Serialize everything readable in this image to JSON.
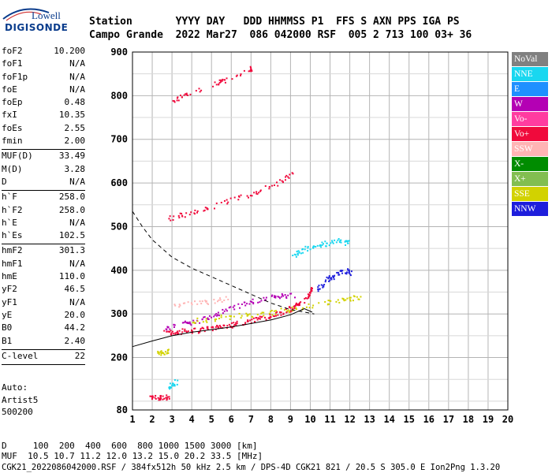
{
  "logo": {
    "top": "Lowell",
    "bottom": "DIGISONDE"
  },
  "header": {
    "row1": "Station       YYYY DAY   DDD HHMMSS P1  FFS S AXN PPS IGA PS",
    "row2": "Campo Grande  2022 Mar27  086 042000 RSF  005 2 713 100 03+ 36"
  },
  "params": [
    {
      "label": "foF2",
      "value": "10.200"
    },
    {
      "label": "foF1",
      "value": "N/A"
    },
    {
      "label": "foF1p",
      "value": "N/A"
    },
    {
      "label": "foE",
      "value": "N/A"
    },
    {
      "label": "foEp",
      "value": "0.48"
    },
    {
      "label": "fxI",
      "value": "10.35"
    },
    {
      "label": "foEs",
      "value": "2.55"
    },
    {
      "label": "fmin",
      "value": "2.00"
    },
    {
      "sep": true
    },
    {
      "label": "MUF(D)",
      "value": "33.49"
    },
    {
      "label": "M(D)",
      "value": "3.28"
    },
    {
      "label": "D",
      "value": "N/A"
    },
    {
      "sep": true
    },
    {
      "label": "h`F",
      "value": "258.0"
    },
    {
      "label": "h`F2",
      "value": "258.0"
    },
    {
      "label": "h`E",
      "value": "N/A"
    },
    {
      "label": "h`Es",
      "value": "102.5"
    },
    {
      "sep": true
    },
    {
      "label": "hmF2",
      "value": "301.3"
    },
    {
      "label": "hmF1",
      "value": "N/A"
    },
    {
      "label": "hmE",
      "value": "110.0"
    },
    {
      "label": "yF2",
      "value": "46.5"
    },
    {
      "label": "yF1",
      "value": "N/A"
    },
    {
      "label": "yE",
      "value": "20.0"
    },
    {
      "label": "B0",
      "value": "44.2"
    },
    {
      "label": "B1",
      "value": "2.40"
    },
    {
      "sep": true
    },
    {
      "label": "C-level",
      "value": "22"
    },
    {
      "sep": true
    }
  ],
  "auto": [
    "Auto:",
    "Artist5",
    "500200"
  ],
  "footer": {
    "line1": "D     100  200  400  600  800 1000 1500 3000 [km]",
    "line2": "MUF  10.5 10.7 11.2 12.0 13.2 15.0 20.2 33.5 [MHz]",
    "line3": "CGK21_2022086042000.RSF / 384fx512h 50 kHz 2.5 km / DPS-4D CGK21 821 / 20.5 S 305.0 E Ion2Png 1.3.20"
  },
  "legend": [
    {
      "label": "NoVal",
      "color": "#808080"
    },
    {
      "label": "NNE",
      "color": "#19d7f0"
    },
    {
      "label": "E",
      "color": "#1e90ff"
    },
    {
      "label": "W",
      "color": "#b400b4"
    },
    {
      "label": "Vo-",
      "color": "#ff3ca0"
    },
    {
      "label": "Vo+",
      "color": "#f00a3c"
    },
    {
      "label": "SSW",
      "color": "#ffb4b4"
    },
    {
      "label": "X-",
      "color": "#008c00"
    },
    {
      "label": "X+",
      "color": "#82be50"
    },
    {
      "label": "SSE",
      "color": "#d2d200"
    },
    {
      "label": "NNW",
      "color": "#1e1edc"
    }
  ],
  "chart_data": {
    "type": "scatter",
    "xlim": [
      1,
      20
    ],
    "ylim": [
      80,
      900
    ],
    "x_ticks": [
      1,
      2,
      3,
      4,
      5,
      6,
      7,
      8,
      9,
      10,
      11,
      12,
      13,
      14,
      15,
      16,
      17,
      18,
      19,
      20
    ],
    "y_ticks": [
      80,
      200,
      300,
      400,
      500,
      600,
      700,
      800,
      900
    ],
    "grid": true,
    "legend_position": "right",
    "traces": [
      {
        "pol": "Vo+",
        "points": [
          [
            2.6,
            258
          ],
          [
            3,
            259
          ],
          [
            3.5,
            261
          ],
          [
            4,
            263
          ],
          [
            4.5,
            265
          ],
          [
            5,
            268
          ],
          [
            5.5,
            272
          ],
          [
            6,
            276
          ],
          [
            6.5,
            281
          ],
          [
            7,
            286
          ],
          [
            7.5,
            292
          ],
          [
            8,
            298
          ],
          [
            8.5,
            305
          ],
          [
            9,
            313
          ],
          [
            9.3,
            320
          ],
          [
            9.6,
            330
          ],
          [
            9.9,
            345
          ],
          [
            10.1,
            360
          ]
        ]
      },
      {
        "pol": "W",
        "points": [
          [
            2.6,
            270
          ],
          [
            3.2,
            275
          ],
          [
            4,
            282
          ],
          [
            4.8,
            292
          ],
          [
            5.5,
            305
          ],
          [
            6.2,
            318
          ],
          [
            7,
            330
          ],
          [
            7.8,
            338
          ],
          [
            8.5,
            342
          ],
          [
            9.2,
            345
          ]
        ]
      },
      {
        "pol": "SSE",
        "points": [
          [
            4,
            285
          ],
          [
            5,
            290
          ],
          [
            6,
            295
          ],
          [
            7,
            300
          ],
          [
            8,
            305
          ],
          [
            9,
            312
          ],
          [
            10,
            320
          ],
          [
            11,
            330
          ],
          [
            12,
            335
          ],
          [
            12.5,
            340
          ]
        ]
      },
      {
        "pol": "NNE",
        "points": [
          [
            9,
            430
          ],
          [
            9.5,
            445
          ],
          [
            10,
            455
          ],
          [
            10.5,
            460
          ],
          [
            11,
            465
          ],
          [
            11.5,
            470
          ],
          [
            12,
            462
          ]
        ]
      },
      {
        "pol": "NNW",
        "points": [
          [
            10.2,
            350
          ],
          [
            10.6,
            370
          ],
          [
            11,
            385
          ],
          [
            11.4,
            395
          ],
          [
            11.8,
            400
          ],
          [
            12,
            395
          ]
        ]
      },
      {
        "pol": "Vo+",
        "points": [
          [
            2.8,
            520
          ],
          [
            3.5,
            528
          ],
          [
            4.5,
            540
          ],
          [
            5.5,
            555
          ],
          [
            6.5,
            570
          ],
          [
            7.5,
            585
          ],
          [
            8.5,
            605
          ],
          [
            9.2,
            625
          ]
        ]
      },
      {
        "pol": "Vo+",
        "points": [
          [
            2.8,
            785
          ],
          [
            3.5,
            800
          ],
          [
            4.5,
            815
          ],
          [
            5.5,
            835
          ],
          [
            6.5,
            855
          ],
          [
            7,
            865
          ]
        ]
      },
      {
        "pol": "SSW",
        "points": [
          [
            3,
            320
          ],
          [
            4,
            325
          ],
          [
            5,
            330
          ],
          [
            6,
            340
          ]
        ]
      },
      {
        "pol": "SSE",
        "points": [
          [
            2.2,
            210
          ],
          [
            2.5,
            212
          ],
          [
            2.8,
            215
          ]
        ]
      },
      {
        "pol": "Vo+",
        "points": [
          [
            1.9,
            108
          ],
          [
            2.2,
            110
          ],
          [
            2.5,
            110
          ],
          [
            2.8,
            110
          ]
        ]
      },
      {
        "pol": "NNE",
        "points": [
          [
            2.8,
            135
          ],
          [
            3,
            140
          ],
          [
            3.2,
            145
          ]
        ]
      }
    ],
    "profile_solid": [
      [
        1,
        225
      ],
      [
        2,
        238
      ],
      [
        3,
        250
      ],
      [
        4,
        258
      ],
      [
        5,
        264
      ],
      [
        6,
        270
      ],
      [
        7,
        278
      ],
      [
        8,
        286
      ],
      [
        9,
        298
      ],
      [
        9.7,
        312
      ],
      [
        10.1,
        304
      ]
    ],
    "profile_dashed": [
      [
        1,
        535
      ],
      [
        1.5,
        500
      ],
      [
        2,
        470
      ],
      [
        3,
        430
      ],
      [
        4,
        405
      ],
      [
        5,
        385
      ],
      [
        6,
        365
      ],
      [
        7,
        345
      ],
      [
        8,
        325
      ],
      [
        9,
        310
      ],
      [
        10.2,
        300
      ]
    ]
  }
}
